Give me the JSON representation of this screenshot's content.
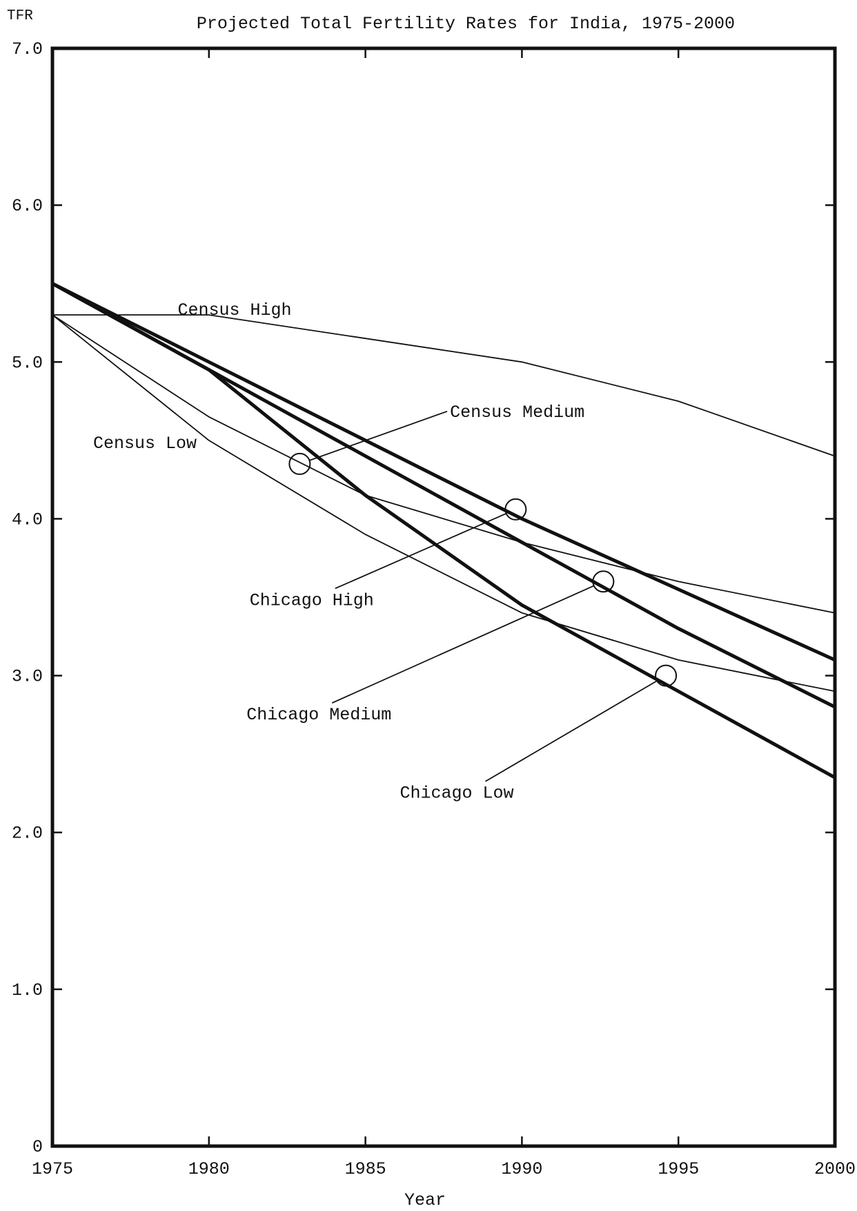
{
  "chart_data": {
    "type": "line",
    "title": "Projected Total Fertility Rates for India, 1975-2000",
    "ylabel": "TFR",
    "xlabel": "Year",
    "xlim": [
      1975,
      2000
    ],
    "ylim": [
      0,
      7.0
    ],
    "x_ticks": [
      "1975",
      "1980",
      "1985",
      "1990",
      "1995",
      "2000"
    ],
    "y_ticks": [
      "0",
      "1.0",
      "2.0",
      "3.0",
      "4.0",
      "5.0",
      "6.0",
      "7.0"
    ],
    "grid": false,
    "series": [
      {
        "name": "Census High",
        "weight": "thin",
        "x": [
          1975,
          1980,
          1985,
          1990,
          1995,
          2000
        ],
        "y": [
          5.3,
          5.3,
          5.15,
          5.0,
          4.75,
          4.4
        ]
      },
      {
        "name": "Census Medium",
        "weight": "thin",
        "x": [
          1975,
          1980,
          1985,
          1990,
          1995,
          2000
        ],
        "y": [
          5.3,
          4.65,
          4.15,
          3.85,
          3.6,
          3.4
        ]
      },
      {
        "name": "Census Low",
        "weight": "thin",
        "x": [
          1975,
          1980,
          1985,
          1990,
          1995,
          2000
        ],
        "y": [
          5.3,
          4.5,
          3.9,
          3.4,
          3.1,
          2.9
        ]
      },
      {
        "name": "Chicago High",
        "weight": "thick",
        "x": [
          1975,
          1980,
          1985,
          1990,
          1995,
          2000
        ],
        "y": [
          5.5,
          5.0,
          4.5,
          4.0,
          3.55,
          3.1
        ]
      },
      {
        "name": "Chicago Medium",
        "weight": "thick",
        "x": [
          1975,
          1980,
          1985,
          1990,
          1995,
          2000
        ],
        "y": [
          5.5,
          4.95,
          4.4,
          3.85,
          3.3,
          2.8
        ]
      },
      {
        "name": "Chicago Low",
        "weight": "thick",
        "x": [
          1975,
          1980,
          1985,
          1990,
          1995,
          2000
        ],
        "y": [
          5.5,
          4.95,
          4.15,
          3.45,
          2.9,
          2.35
        ]
      }
    ],
    "annotations": [
      {
        "text": "Census High",
        "label_at": [
          1979,
          5.3
        ],
        "anchor": null
      },
      {
        "text": "Census Medium",
        "label_at": [
          1987.7,
          4.65
        ],
        "anchor": [
          1982.9,
          4.35
        ]
      },
      {
        "text": "Census Low",
        "label_at": [
          1976.3,
          4.45
        ],
        "anchor": null
      },
      {
        "text": "Chicago High",
        "label_at": [
          1981.3,
          3.45
        ],
        "anchor": [
          1989.8,
          4.06
        ]
      },
      {
        "text": "Chicago Medium",
        "label_at": [
          1981.2,
          2.72
        ],
        "anchor": [
          1992.6,
          3.6
        ]
      },
      {
        "text": "Chicago Low",
        "label_at": [
          1986.1,
          2.22
        ],
        "anchor": [
          1994.6,
          3.0
        ]
      }
    ]
  }
}
